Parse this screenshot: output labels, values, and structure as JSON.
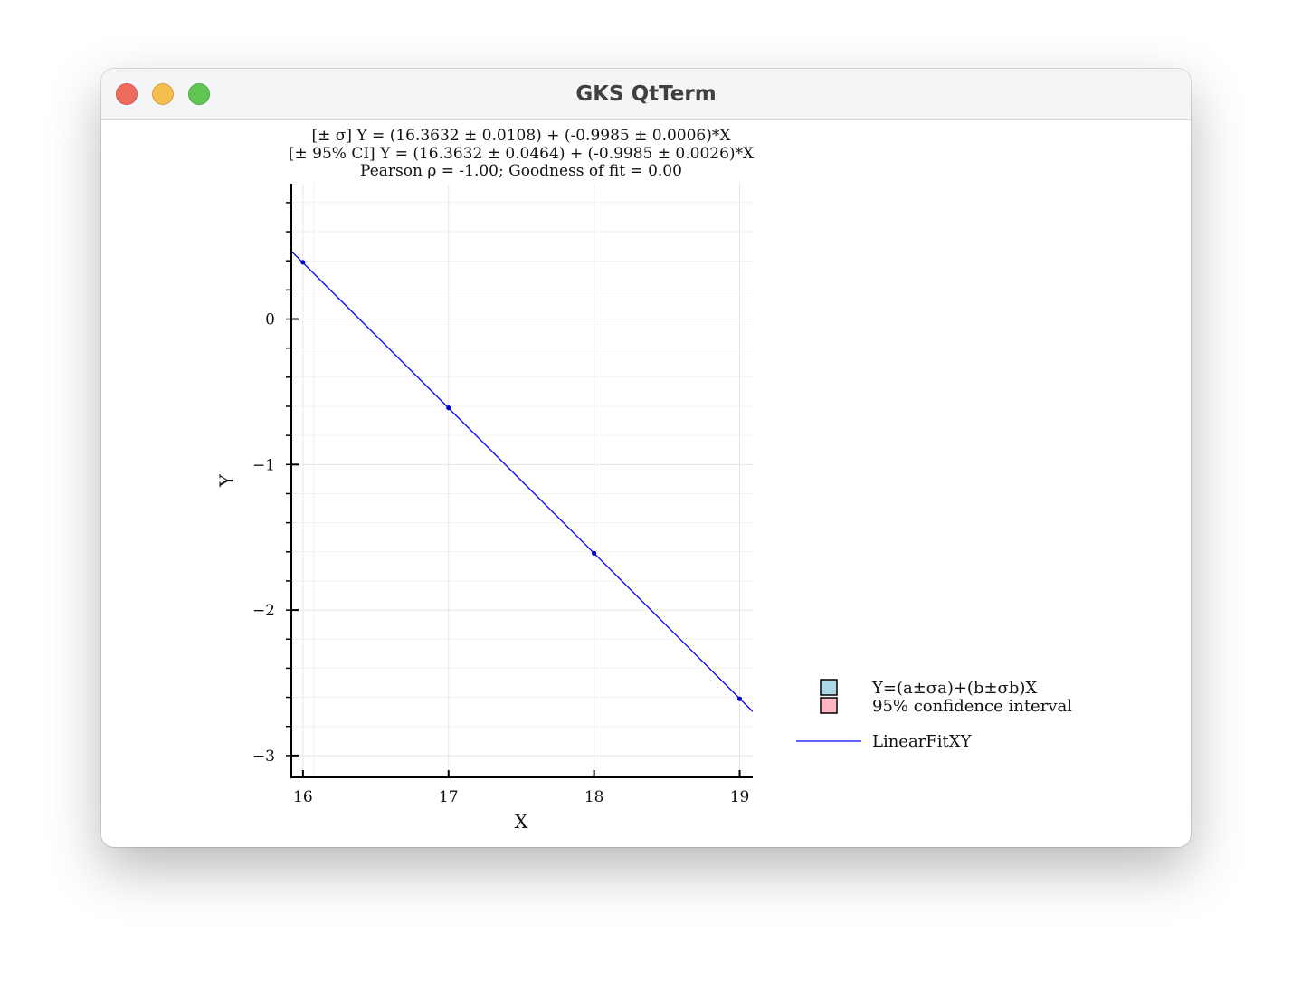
{
  "window": {
    "title": "GKS QtTerm"
  },
  "chart_data": {
    "type": "line",
    "title_lines": [
      "[± σ]  Y = (16.3632 ± 0.0108) + (-0.9985 ± 0.0006)*X",
      "[± 95% CI]  Y = (16.3632 ± 0.0464) + (-0.9985 ± 0.0026)*X",
      "Pearson ρ = -1.00; Goodness of fit = 0.00"
    ],
    "xlabel": "X",
    "ylabel": "Y",
    "xlim": [
      15.92,
      19.09
    ],
    "ylim": [
      -3.15,
      0.93
    ],
    "xticks": [
      16,
      17,
      18,
      19
    ],
    "yticks": [
      0,
      -1,
      -2,
      -3
    ],
    "ytick_labels": [
      "0",
      "−1",
      "−2",
      "−3"
    ],
    "grid": true,
    "points": {
      "x": [
        16,
        17,
        18,
        19
      ],
      "y": [
        0.39,
        -0.61,
        -1.61,
        -2.61
      ],
      "color": "#0000cc"
    },
    "fit": {
      "intercept": 16.3632,
      "slope": -0.9985,
      "color": "#0000ff"
    },
    "legend": {
      "placement": "right",
      "entries": [
        {
          "label": "Y=(a±σa)+(b±σb)X",
          "kind": "box",
          "color": "#add8e6"
        },
        {
          "label": "95% confidence interval",
          "kind": "box",
          "color": "#ffb6c1"
        },
        {
          "label": "LinearFitXY",
          "kind": "line",
          "color": "#0000ff"
        }
      ]
    }
  }
}
